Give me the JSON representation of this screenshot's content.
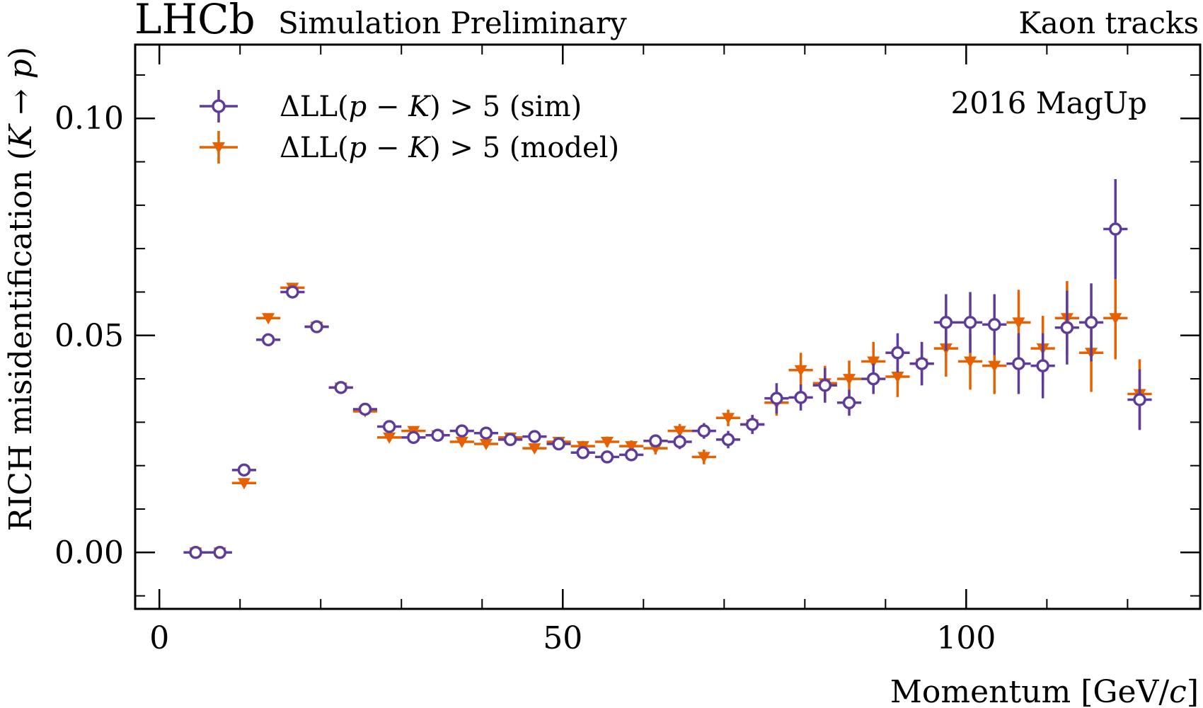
{
  "header": {
    "experiment": "LHCb",
    "status": "Simulation Preliminary",
    "sample": "Kaon tracks"
  },
  "annotation": "2016 MagUp",
  "colors": {
    "sim": "#5e3c99",
    "model": "#e66101",
    "axis": "#000000"
  },
  "legend": {
    "entries": [
      {
        "prefix": "ΔLL(",
        "p": "p",
        "minus": " − ",
        "k": "K",
        "suffix": ") > 5 (sim)"
      },
      {
        "prefix": "ΔLL(",
        "p": "p",
        "minus": " − ",
        "k": "K",
        "suffix": ") > 5 (model)"
      }
    ]
  },
  "chart_data": {
    "type": "scatter",
    "xlabel": {
      "text": "Momentum [GeV/",
      "italic": "c",
      "close": "]"
    },
    "ylabel": {
      "text": "RICH misidentification (",
      "k": "K",
      "arrow": " → ",
      "p": "p",
      "close": ")"
    },
    "xlim": [
      -3,
      129
    ],
    "ylim": [
      -0.013,
      0.117
    ],
    "x_ticks": [
      0,
      50,
      100
    ],
    "x_tick_labels": [
      "0",
      "50",
      "100"
    ],
    "y_ticks": [
      0.0,
      0.05,
      0.1
    ],
    "y_tick_labels": [
      "0.00",
      "0.05",
      "0.10"
    ],
    "x_minor_step": 10,
    "y_minor_step": 0.01,
    "bin_half_width": 1.5,
    "legend_position": "top-left",
    "series": [
      {
        "name": "ΔLL(p − K) > 5 (sim)",
        "marker": "open-circle",
        "x": [
          4.5,
          7.5,
          10.5,
          13.5,
          16.5,
          19.5,
          22.5,
          25.5,
          28.5,
          31.5,
          34.5,
          37.5,
          40.5,
          43.5,
          46.5,
          49.5,
          52.5,
          55.5,
          58.5,
          61.5,
          64.5,
          67.5,
          70.5,
          73.5,
          76.5,
          79.5,
          82.5,
          85.5,
          88.5,
          91.5,
          94.5,
          97.5,
          100.5,
          103.5,
          106.5,
          109.5,
          112.5,
          115.5,
          118.5,
          121.5
        ],
        "y": [
          0.0,
          0.0,
          0.019,
          0.049,
          0.06,
          0.052,
          0.038,
          0.033,
          0.029,
          0.0265,
          0.027,
          0.028,
          0.0275,
          0.026,
          0.0267,
          0.025,
          0.023,
          0.022,
          0.0225,
          0.0257,
          0.0255,
          0.028,
          0.026,
          0.0295,
          0.0355,
          0.0357,
          0.0385,
          0.0345,
          0.04,
          0.046,
          0.0435,
          0.053,
          0.053,
          0.0525,
          0.0435,
          0.043,
          0.0518,
          0.053,
          0.0745,
          0.0352
        ],
        "yerr": [
          0.0003,
          0.0003,
          0.0007,
          0.0008,
          0.0008,
          0.0007,
          0.0006,
          0.0006,
          0.0008,
          0.0009,
          0.0009,
          0.001,
          0.001,
          0.001,
          0.001,
          0.0012,
          0.0012,
          0.0013,
          0.0014,
          0.0015,
          0.0017,
          0.0018,
          0.002,
          0.0022,
          0.0035,
          0.003,
          0.004,
          0.003,
          0.0035,
          0.0045,
          0.005,
          0.0065,
          0.007,
          0.007,
          0.007,
          0.0075,
          0.0085,
          0.009,
          0.0115,
          0.007
        ]
      },
      {
        "name": "ΔLL(p − K) > 5 (model)",
        "marker": "filled-triangle-down",
        "x": [
          4.5,
          7.5,
          10.5,
          13.5,
          16.5,
          19.5,
          22.5,
          25.5,
          28.5,
          31.5,
          34.5,
          37.5,
          40.5,
          43.5,
          46.5,
          49.5,
          52.5,
          55.5,
          58.5,
          61.5,
          64.5,
          67.5,
          70.5,
          73.5,
          76.5,
          79.5,
          82.5,
          85.5,
          88.5,
          91.5,
          94.5,
          97.5,
          100.5,
          103.5,
          106.5,
          109.5,
          112.5,
          115.5,
          118.5,
          121.5
        ],
        "y": [
          0.0,
          0.0,
          0.016,
          0.054,
          0.061,
          0.052,
          0.038,
          0.0325,
          0.0265,
          0.028,
          0.027,
          0.0255,
          0.025,
          0.0265,
          0.024,
          0.0255,
          0.0245,
          0.0255,
          0.0245,
          0.024,
          0.028,
          0.022,
          0.031,
          0.0295,
          0.0345,
          0.042,
          0.039,
          0.04,
          0.044,
          0.0405,
          0.0435,
          0.047,
          0.044,
          0.043,
          0.053,
          0.047,
          0.054,
          0.046,
          0.054,
          0.0365
        ],
        "yerr": [
          0.0003,
          0.0003,
          0.0007,
          0.0007,
          0.0007,
          0.0007,
          0.0006,
          0.0006,
          0.0008,
          0.0009,
          0.0009,
          0.0009,
          0.001,
          0.001,
          0.001,
          0.001,
          0.0012,
          0.0012,
          0.0013,
          0.0014,
          0.0016,
          0.0017,
          0.0019,
          0.0022,
          0.003,
          0.004,
          0.004,
          0.0042,
          0.0045,
          0.0047,
          0.005,
          0.0065,
          0.0065,
          0.0065,
          0.0075,
          0.0075,
          0.0085,
          0.009,
          0.0095,
          0.008
        ]
      }
    ]
  }
}
